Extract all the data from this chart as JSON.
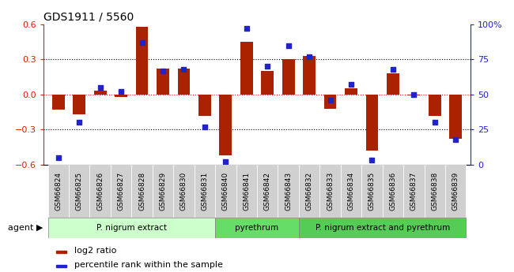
{
  "title": "GDS1911 / 5560",
  "samples": [
    "GSM66824",
    "GSM66825",
    "GSM66826",
    "GSM66827",
    "GSM66828",
    "GSM66829",
    "GSM66830",
    "GSM66831",
    "GSM66840",
    "GSM66841",
    "GSM66842",
    "GSM66843",
    "GSM66832",
    "GSM66833",
    "GSM66834",
    "GSM66835",
    "GSM66836",
    "GSM66837",
    "GSM66838",
    "GSM66839"
  ],
  "log2_ratio": [
    -0.13,
    -0.17,
    0.03,
    -0.02,
    0.58,
    0.22,
    0.22,
    -0.18,
    -0.52,
    0.45,
    0.2,
    0.3,
    0.33,
    -0.12,
    0.05,
    -0.48,
    0.18,
    -0.01,
    -0.18,
    -0.38
  ],
  "percentile": [
    5,
    30,
    55,
    52,
    87,
    67,
    68,
    27,
    2,
    97,
    70,
    85,
    77,
    46,
    57,
    3,
    68,
    50,
    30,
    18
  ],
  "groups": [
    {
      "label": "P. nigrum extract",
      "start": 0,
      "end": 8,
      "color": "#ccffcc"
    },
    {
      "label": "pyrethrum",
      "start": 8,
      "end": 12,
      "color": "#66dd66"
    },
    {
      "label": "P. nigrum extract and pyrethrum",
      "start": 12,
      "end": 20,
      "color": "#55cc55"
    }
  ],
  "bar_color": "#aa2200",
  "dot_color": "#2222cc",
  "ylim": [
    -0.6,
    0.6
  ],
  "y2lim": [
    0,
    100
  ],
  "yticks": [
    -0.6,
    -0.3,
    0.0,
    0.3,
    0.6
  ],
  "y2ticks": [
    0,
    25,
    50,
    75,
    100
  ],
  "legend_items": [
    {
      "label": "log2 ratio",
      "color": "#aa2200"
    },
    {
      "label": "percentile rank within the sample",
      "color": "#2222cc"
    }
  ]
}
